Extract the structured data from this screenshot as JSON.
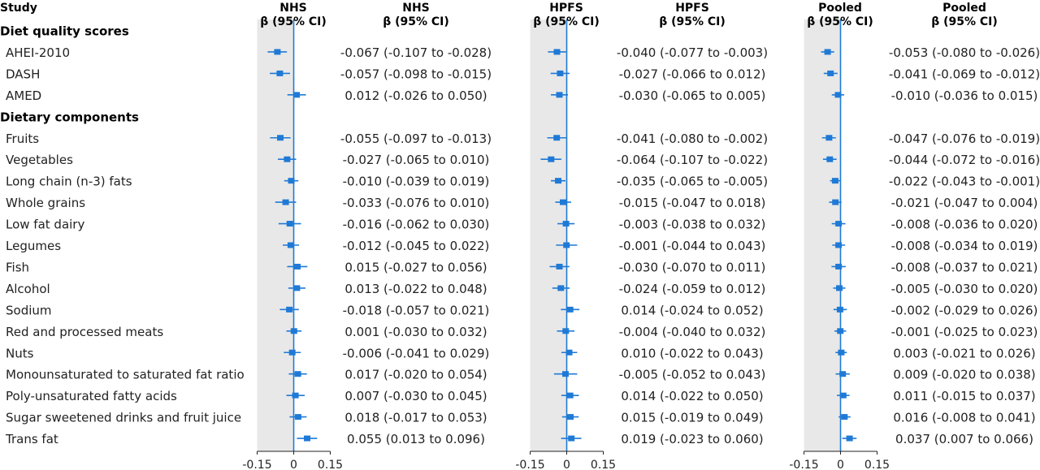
{
  "header": {
    "study": "Study",
    "beta_ci": "β (95% CI)",
    "panels": [
      "NHS",
      "HPFS",
      "Pooled"
    ]
  },
  "axis_ticks": [
    "-0.15",
    "0",
    "0.15"
  ],
  "colors": {
    "marker": "#1f7ad6",
    "shade": "#e8e8e8"
  },
  "rows": [
    {
      "type": "section",
      "label": "Diet quality scores"
    },
    {
      "type": "item",
      "label": "AHEI-2010"
    },
    {
      "type": "item",
      "label": "DASH"
    },
    {
      "type": "item",
      "label": "AMED"
    },
    {
      "type": "section",
      "label": "Dietary components"
    },
    {
      "type": "item",
      "label": "Fruits"
    },
    {
      "type": "item",
      "label": "Vegetables"
    },
    {
      "type": "item",
      "label": "Long chain (n-3) fats"
    },
    {
      "type": "item",
      "label": "Whole grains"
    },
    {
      "type": "item",
      "label": "Low fat dairy"
    },
    {
      "type": "item",
      "label": "Legumes"
    },
    {
      "type": "item",
      "label": "Fish"
    },
    {
      "type": "item",
      "label": "Alcohol"
    },
    {
      "type": "item",
      "label": "Sodium"
    },
    {
      "type": "item",
      "label": "Red and processed meats"
    },
    {
      "type": "item",
      "label": "Nuts"
    },
    {
      "type": "item",
      "label": "Monounsaturated to saturated fat ratio"
    },
    {
      "type": "item",
      "label": "Poly-unsaturated fatty acids"
    },
    {
      "type": "item",
      "label": "Sugar sweetened drinks and fruit juice"
    },
    {
      "type": "item",
      "label": "Trans fat"
    }
  ],
  "chart_data": {
    "type": "forest",
    "xlim": [
      -0.15,
      0.15
    ],
    "xticks": [
      -0.15,
      0,
      0.15
    ],
    "shaded_region": [
      -0.15,
      0
    ],
    "reference_line": 0,
    "categories": [
      "AHEI-2010",
      "DASH",
      "AMED",
      "Fruits",
      "Vegetables",
      "Long chain (n-3) fats",
      "Whole grains",
      "Low fat dairy",
      "Legumes",
      "Fish",
      "Alcohol",
      "Sodium",
      "Red and processed meats",
      "Nuts",
      "Monounsaturated to saturated fat ratio",
      "Poly-unsaturated fatty acids",
      "Sugar sweetened drinks and fruit juice",
      "Trans fat"
    ],
    "series": [
      {
        "name": "NHS",
        "estimates": [
          {
            "beta": -0.067,
            "lo": -0.107,
            "hi": -0.028,
            "text": "-0.067 (-0.107 to -0.028)"
          },
          {
            "beta": -0.057,
            "lo": -0.098,
            "hi": -0.015,
            "text": "-0.057 (-0.098 to -0.015)"
          },
          {
            "beta": 0.012,
            "lo": -0.026,
            "hi": 0.05,
            "text": "0.012 (-0.026 to 0.050)"
          },
          {
            "beta": -0.055,
            "lo": -0.097,
            "hi": -0.013,
            "text": "-0.055 (-0.097 to -0.013)"
          },
          {
            "beta": -0.027,
            "lo": -0.065,
            "hi": 0.01,
            "text": "-0.027 (-0.065 to 0.010)"
          },
          {
            "beta": -0.01,
            "lo": -0.039,
            "hi": 0.019,
            "text": "-0.010 (-0.039 to 0.019)"
          },
          {
            "beta": -0.033,
            "lo": -0.076,
            "hi": 0.01,
            "text": "-0.033 (-0.076 to 0.010)"
          },
          {
            "beta": -0.016,
            "lo": -0.062,
            "hi": 0.03,
            "text": "-0.016 (-0.062 to 0.030)"
          },
          {
            "beta": -0.012,
            "lo": -0.045,
            "hi": 0.022,
            "text": "-0.012 (-0.045 to 0.022)"
          },
          {
            "beta": 0.015,
            "lo": -0.027,
            "hi": 0.056,
            "text": "0.015 (-0.027 to 0.056)"
          },
          {
            "beta": 0.013,
            "lo": -0.022,
            "hi": 0.048,
            "text": "0.013 (-0.022 to 0.048)"
          },
          {
            "beta": -0.018,
            "lo": -0.057,
            "hi": 0.021,
            "text": "-0.018 (-0.057 to 0.021)"
          },
          {
            "beta": 0.001,
            "lo": -0.03,
            "hi": 0.032,
            "text": "0.001 (-0.030 to 0.032)"
          },
          {
            "beta": -0.006,
            "lo": -0.041,
            "hi": 0.029,
            "text": "-0.006 (-0.041 to 0.029)"
          },
          {
            "beta": 0.017,
            "lo": -0.02,
            "hi": 0.054,
            "text": "0.017 (-0.020 to 0.054)"
          },
          {
            "beta": 0.007,
            "lo": -0.03,
            "hi": 0.045,
            "text": "0.007 (-0.030 to 0.045)"
          },
          {
            "beta": 0.018,
            "lo": -0.017,
            "hi": 0.053,
            "text": "0.018 (-0.017 to 0.053)"
          },
          {
            "beta": 0.055,
            "lo": 0.013,
            "hi": 0.096,
            "text": "0.055 (0.013 to 0.096)"
          }
        ]
      },
      {
        "name": "HPFS",
        "estimates": [
          {
            "beta": -0.04,
            "lo": -0.077,
            "hi": -0.003,
            "text": "-0.040 (-0.077 to -0.003)"
          },
          {
            "beta": -0.027,
            "lo": -0.066,
            "hi": 0.012,
            "text": "-0.027 (-0.066 to 0.012)"
          },
          {
            "beta": -0.03,
            "lo": -0.065,
            "hi": 0.005,
            "text": "-0.030 (-0.065 to 0.005)"
          },
          {
            "beta": -0.041,
            "lo": -0.08,
            "hi": -0.002,
            "text": "-0.041 (-0.080 to -0.002)"
          },
          {
            "beta": -0.064,
            "lo": -0.107,
            "hi": -0.022,
            "text": "-0.064 (-0.107 to -0.022)"
          },
          {
            "beta": -0.035,
            "lo": -0.065,
            "hi": -0.005,
            "text": "-0.035 (-0.065 to -0.005)"
          },
          {
            "beta": -0.015,
            "lo": -0.047,
            "hi": 0.018,
            "text": "-0.015 (-0.047 to 0.018)"
          },
          {
            "beta": -0.003,
            "lo": -0.038,
            "hi": 0.032,
            "text": "-0.003 (-0.038 to 0.032)"
          },
          {
            "beta": -0.001,
            "lo": -0.044,
            "hi": 0.043,
            "text": "-0.001 (-0.044 to 0.043)"
          },
          {
            "beta": -0.03,
            "lo": -0.07,
            "hi": 0.011,
            "text": "-0.030 (-0.070 to 0.011)"
          },
          {
            "beta": -0.024,
            "lo": -0.059,
            "hi": 0.012,
            "text": "-0.024 (-0.059 to 0.012)"
          },
          {
            "beta": 0.014,
            "lo": -0.024,
            "hi": 0.052,
            "text": "0.014 (-0.024 to 0.052)"
          },
          {
            "beta": -0.004,
            "lo": -0.04,
            "hi": 0.032,
            "text": "-0.004 (-0.040 to 0.032)"
          },
          {
            "beta": 0.01,
            "lo": -0.022,
            "hi": 0.043,
            "text": "0.010 (-0.022 to 0.043)"
          },
          {
            "beta": -0.005,
            "lo": -0.052,
            "hi": 0.043,
            "text": "-0.005 (-0.052 to 0.043)"
          },
          {
            "beta": 0.014,
            "lo": -0.022,
            "hi": 0.05,
            "text": "0.014 (-0.022 to 0.050)"
          },
          {
            "beta": 0.015,
            "lo": -0.019,
            "hi": 0.049,
            "text": "0.015 (-0.019 to 0.049)"
          },
          {
            "beta": 0.019,
            "lo": -0.023,
            "hi": 0.06,
            "text": "0.019 (-0.023 to 0.060)"
          }
        ]
      },
      {
        "name": "Pooled",
        "estimates": [
          {
            "beta": -0.053,
            "lo": -0.08,
            "hi": -0.026,
            "text": "-0.053 (-0.080 to -0.026)"
          },
          {
            "beta": -0.041,
            "lo": -0.069,
            "hi": -0.012,
            "text": "-0.041 (-0.069 to -0.012)"
          },
          {
            "beta": -0.01,
            "lo": -0.036,
            "hi": 0.015,
            "text": "-0.010 (-0.036 to 0.015)"
          },
          {
            "beta": -0.047,
            "lo": -0.076,
            "hi": -0.019,
            "text": "-0.047 (-0.076 to -0.019)"
          },
          {
            "beta": -0.044,
            "lo": -0.072,
            "hi": -0.016,
            "text": "-0.044 (-0.072 to -0.016)"
          },
          {
            "beta": -0.022,
            "lo": -0.043,
            "hi": -0.001,
            "text": "-0.022 (-0.043 to -0.001)"
          },
          {
            "beta": -0.021,
            "lo": -0.047,
            "hi": 0.004,
            "text": "-0.021 (-0.047 to 0.004)"
          },
          {
            "beta": -0.008,
            "lo": -0.036,
            "hi": 0.02,
            "text": "-0.008 (-0.036 to 0.020)"
          },
          {
            "beta": -0.008,
            "lo": -0.034,
            "hi": 0.019,
            "text": "-0.008 (-0.034 to 0.019)"
          },
          {
            "beta": -0.008,
            "lo": -0.037,
            "hi": 0.021,
            "text": "-0.008 (-0.037 to 0.021)"
          },
          {
            "beta": -0.005,
            "lo": -0.03,
            "hi": 0.02,
            "text": "-0.005 (-0.030 to 0.020)"
          },
          {
            "beta": -0.002,
            "lo": -0.029,
            "hi": 0.026,
            "text": "-0.002 (-0.029 to 0.026)"
          },
          {
            "beta": -0.001,
            "lo": -0.025,
            "hi": 0.023,
            "text": "-0.001 (-0.025 to 0.023)"
          },
          {
            "beta": 0.003,
            "lo": -0.021,
            "hi": 0.026,
            "text": "0.003 (-0.021 to 0.026)"
          },
          {
            "beta": 0.009,
            "lo": -0.02,
            "hi": 0.038,
            "text": "0.009 (-0.020 to 0.038)"
          },
          {
            "beta": 0.011,
            "lo": -0.015,
            "hi": 0.037,
            "text": "0.011 (-0.015 to 0.037)"
          },
          {
            "beta": 0.016,
            "lo": -0.008,
            "hi": 0.041,
            "text": "0.016 (-0.008 to 0.041)"
          },
          {
            "beta": 0.037,
            "lo": 0.007,
            "hi": 0.066,
            "text": "0.037 (0.007 to 0.066)"
          }
        ]
      }
    ]
  }
}
